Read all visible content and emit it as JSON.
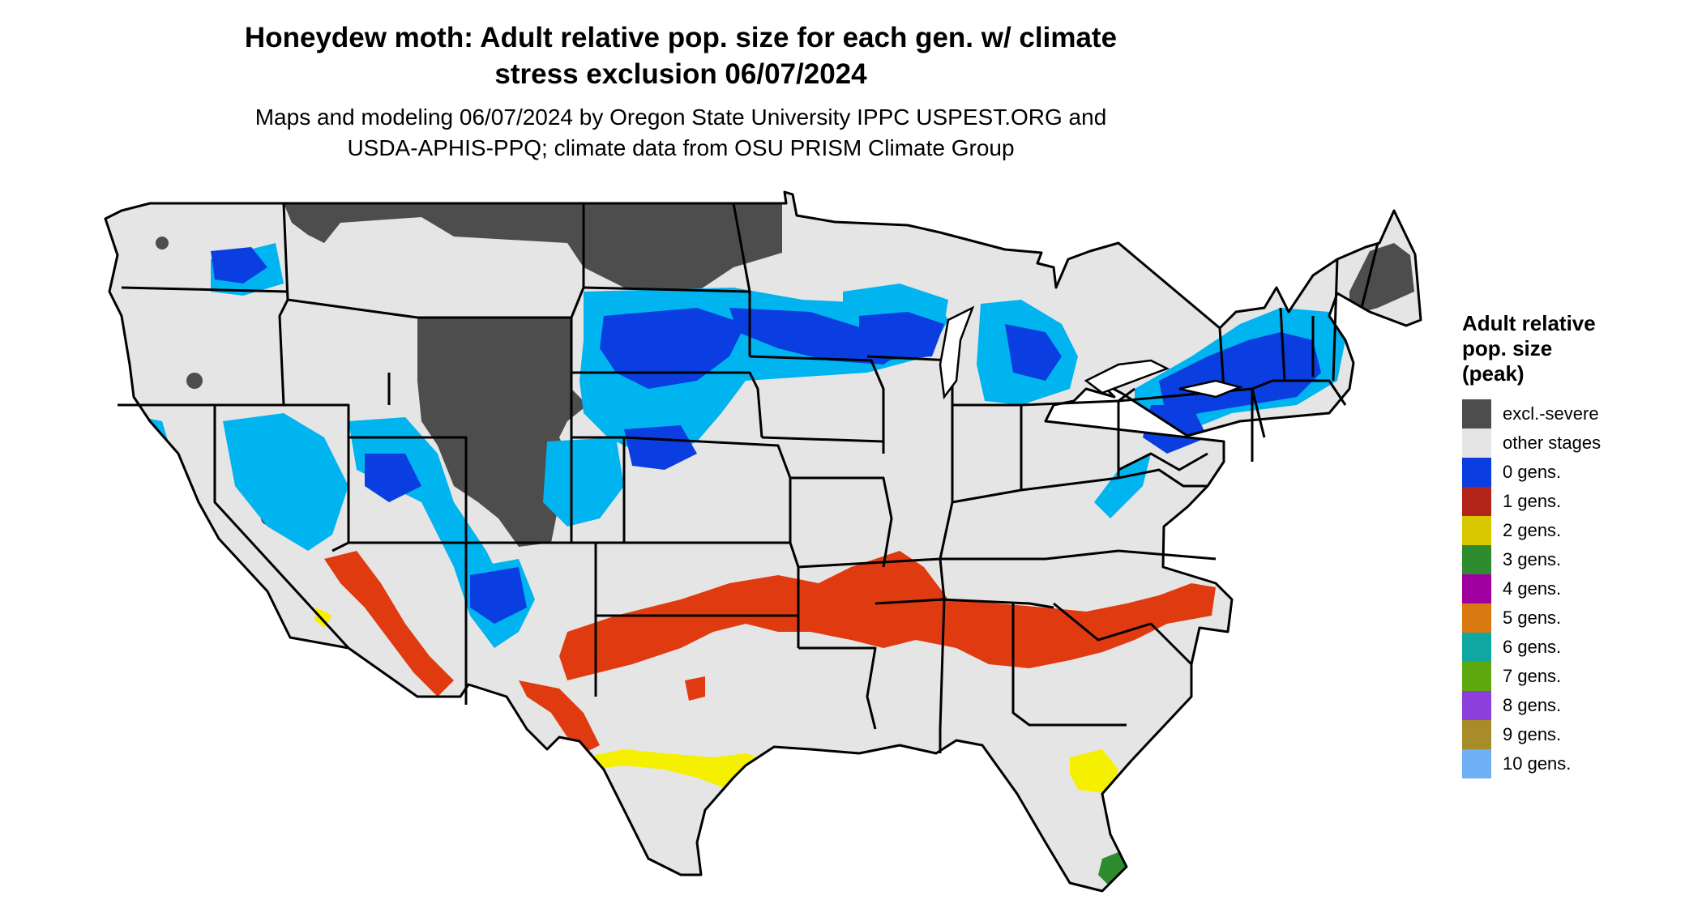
{
  "title_line1": "Honeydew moth: Adult relative pop. size for each gen. w/ climate",
  "title_line2": "stress exclusion 06/07/2024",
  "subtitle_line1": "Maps and modeling 06/07/2024 by Oregon State University IPPC USPEST.ORG and",
  "subtitle_line2": "USDA-APHIS-PPQ; climate data from OSU PRISM Climate Group",
  "legend": {
    "title_line1": "Adult relative",
    "title_line2": "pop. size",
    "title_line3": "(peak)",
    "items": [
      {
        "label": "excl.-severe",
        "color": "#4d4d4d"
      },
      {
        "label": "other stages",
        "color": "#e5e5e5"
      },
      {
        "label": "0 gens.",
        "color": "#0a3ee0"
      },
      {
        "label": "1 gens.",
        "color": "#b2231a"
      },
      {
        "label": "2 gens.",
        "color": "#d9c700"
      },
      {
        "label": "3 gens.",
        "color": "#2e8b2e"
      },
      {
        "label": "4 gens.",
        "color": "#a100a1"
      },
      {
        "label": "5 gens.",
        "color": "#d97a10"
      },
      {
        "label": "6 gens.",
        "color": "#0fa7a0"
      },
      {
        "label": "7 gens.",
        "color": "#5ea80f"
      },
      {
        "label": "8 gens.",
        "color": "#8d3fdc"
      },
      {
        "label": "9 gens.",
        "color": "#a88c28"
      },
      {
        "label": "10 gens.",
        "color": "#6fb0f5"
      }
    ]
  }
}
